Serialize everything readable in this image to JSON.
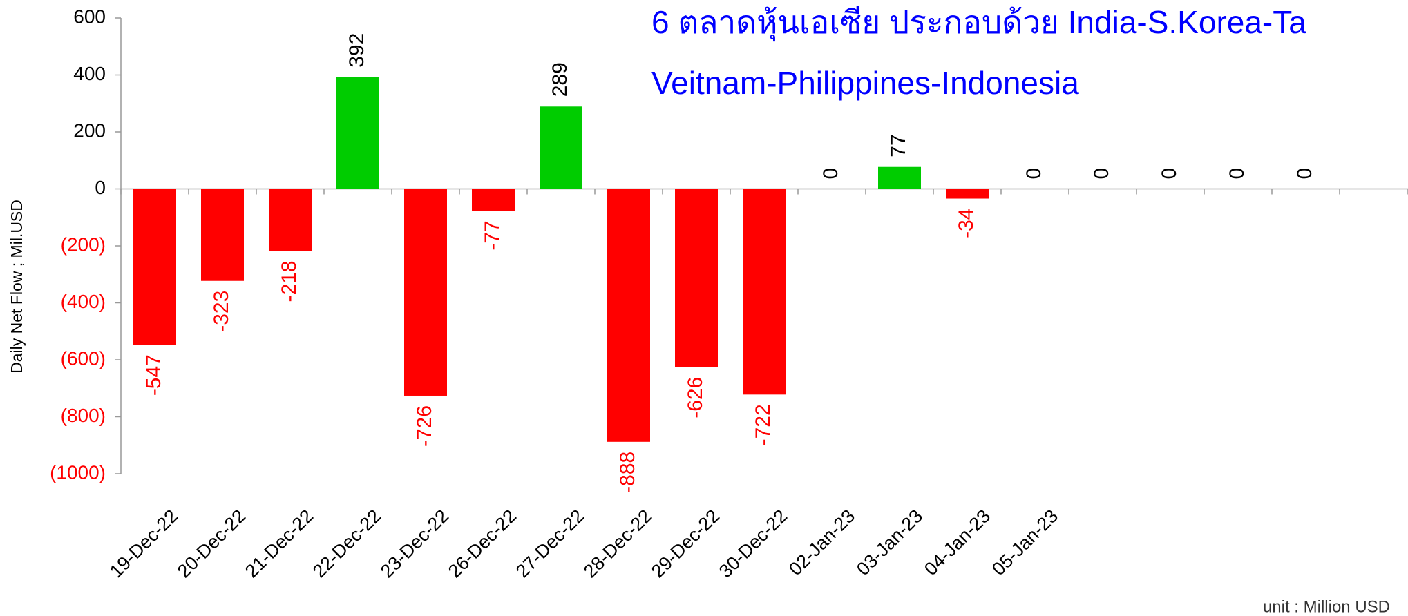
{
  "chart_data": {
    "type": "bar",
    "title": "6 ตลาดหุ้นเอเซีย ประกอบด้วย India-S.Korea-Ta",
    "subtitle": "Veitnam-Philippines-Indonesia",
    "y_label": "Daily Net Flow ; Mil.USD",
    "note": "unit : Million USD",
    "categories": [
      "19-Dec-22",
      "20-Dec-22",
      "21-Dec-22",
      "22-Dec-22",
      "23-Dec-22",
      "26-Dec-22",
      "27-Dec-22",
      "28-Dec-22",
      "29-Dec-22",
      "30-Dec-22",
      "02-Jan-23",
      "03-Jan-23",
      "04-Jan-23",
      "05-Jan-23",
      null,
      null,
      null,
      null,
      null
    ],
    "values": [
      -547,
      -323,
      -218,
      392,
      -726,
      -77,
      289,
      -888,
      -626,
      -722,
      0,
      77,
      -34,
      0,
      0,
      0,
      0,
      0,
      null
    ],
    "positive_color": "#00cc00",
    "negative_color": "#ff0000",
    "ylim": [
      -1000,
      600
    ],
    "yticks": [
      600,
      400,
      200,
      0,
      {
        "value": -200,
        "label": "(200)"
      },
      {
        "value": -400,
        "label": "(400)"
      },
      {
        "value": -600,
        "label": "(600)"
      },
      {
        "value": -800,
        "label": "(800)"
      },
      {
        "value": -1000,
        "label": "(1000)"
      }
    ],
    "grid": false
  }
}
